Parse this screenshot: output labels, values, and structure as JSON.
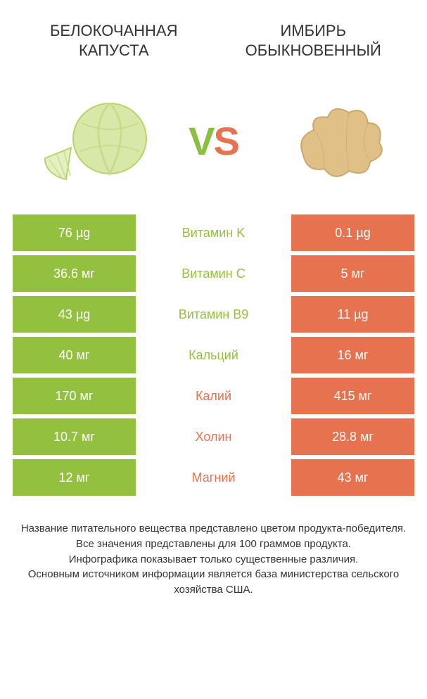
{
  "colors": {
    "left": "#94c03f",
    "right": "#e6724f",
    "background": "#ffffff",
    "text": "#333333",
    "cell_text": "#ffffff"
  },
  "typography": {
    "title_fontsize": 22,
    "vs_fontsize": 56,
    "cell_fontsize": 18,
    "footer_fontsize": 15
  },
  "left": {
    "title": "БЕЛОКОЧАННАЯ КАПУСТА",
    "image": "cabbage"
  },
  "right": {
    "title": "ИМБИРЬ ОБЫКНОВЕННЫЙ",
    "image": "ginger"
  },
  "vs_label": "VS",
  "rows": [
    {
      "nutrient": "Витамин K",
      "left": "76 µg",
      "right": "0.1 µg",
      "winner": "left"
    },
    {
      "nutrient": "Витамин C",
      "left": "36.6 мг",
      "right": "5 мг",
      "winner": "left"
    },
    {
      "nutrient": "Витамин B9",
      "left": "43 µg",
      "right": "11 µg",
      "winner": "left"
    },
    {
      "nutrient": "Кальций",
      "left": "40 мг",
      "right": "16 мг",
      "winner": "left"
    },
    {
      "nutrient": "Калий",
      "left": "170 мг",
      "right": "415 мг",
      "winner": "right"
    },
    {
      "nutrient": "Холин",
      "left": "10.7 мг",
      "right": "28.8 мг",
      "winner": "right"
    },
    {
      "nutrient": "Магний",
      "left": "12 мг",
      "right": "43 мг",
      "winner": "right"
    }
  ],
  "footer": [
    "Название питательного вещества представлено цветом продукта-победителя.",
    "Все значения представлены для 100 граммов продукта.",
    "Инфографика показывает только существенные различия.",
    "Основным источником информации является база министерства сельского хозяйства США."
  ]
}
